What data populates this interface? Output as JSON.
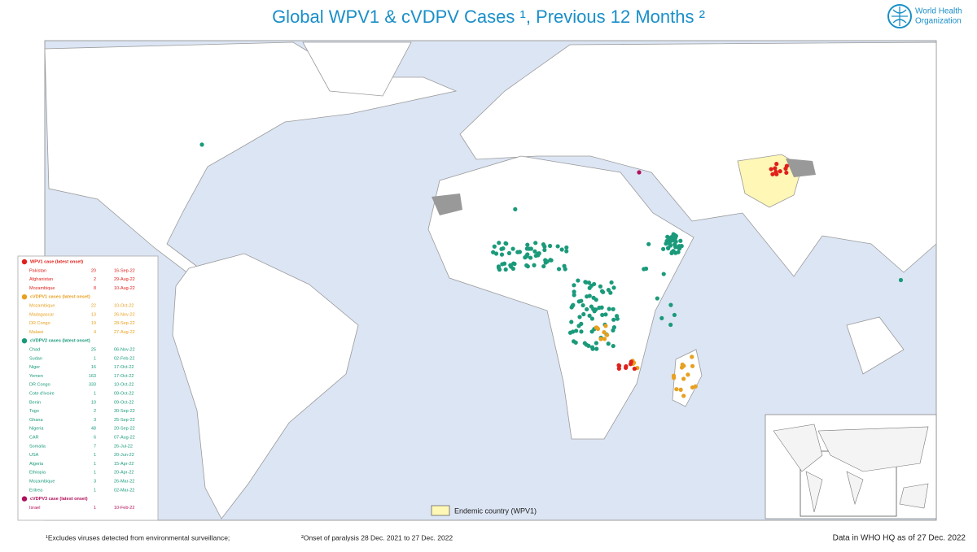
{
  "title": "Global WPV1 & cVDPV Cases ¹, Previous 12 Months ²",
  "logo": {
    "line1": "World Health",
    "line2": "Organization"
  },
  "case_table": [
    {
      "header": "WPV1 case (latest onset)",
      "color": "#e0201b",
      "rows": [
        [
          "Pakistan",
          "20",
          "16-Sep-22"
        ],
        [
          "Afghanistan",
          "2",
          "29-Aug-22"
        ],
        [
          "Mozambique",
          "8",
          "10-Aug-22"
        ]
      ]
    },
    {
      "header": "cVDPV1 cases (latest onset)",
      "color": "#e8a020",
      "rows": [
        [
          "Mozambique",
          "22",
          "10-Oct-22"
        ],
        [
          "Madagascar",
          "13",
          "26-Nov-22"
        ],
        [
          "DR Congo",
          "19",
          "28-Sep-22"
        ],
        [
          "Malawi",
          "4",
          "27-Aug-22"
        ]
      ]
    },
    {
      "header": "cVDPV2 cases (latest onset)",
      "color": "#1a9a7a",
      "rows": [
        [
          "Chad",
          "25",
          "06-Nov-22"
        ],
        [
          "Sudan",
          "1",
          "02-Feb-22"
        ],
        [
          "Niger",
          "16",
          "17-Oct-22"
        ],
        [
          "Yemen",
          "163",
          "17-Oct-22"
        ],
        [
          "DR Congo",
          "333",
          "10-Oct-22"
        ],
        [
          "Cote d'Ivoire",
          "1",
          "09-Oct-22"
        ],
        [
          "Benin",
          "10",
          "09-Oct-22"
        ],
        [
          "Togo",
          "2",
          "30-Sep-22"
        ],
        [
          "Ghana",
          "3",
          "25-Sep-22"
        ],
        [
          "Nigeria",
          "48",
          "20-Sep-22"
        ],
        [
          "CAR",
          "6",
          "07-Aug-22"
        ],
        [
          "Somalia",
          "7",
          "26-Jul-22"
        ],
        [
          "USA",
          "1",
          "20-Jun-22"
        ],
        [
          "Algeria",
          "1",
          "15-Apr-22"
        ],
        [
          "Ethiopia",
          "1",
          "20-Apr-22"
        ],
        [
          "Mozambique",
          "3",
          "26-Mar-22"
        ],
        [
          "Eritrea",
          "1",
          "02-Mar-22"
        ]
      ]
    },
    {
      "header": "cVDPV3 case (latest onset)",
      "color": "#b0105a",
      "rows": [
        [
          "Israel",
          "1",
          "10-Feb-22"
        ]
      ]
    }
  ],
  "legend": "Endemic country (WPV1)",
  "footnotes": {
    "note1": "¹Excludes viruses detected from environmental surveillance;",
    "note2": "²Onset of paralysis  28 Dec. 2021 to 27 Dec. 2022",
    "data_date": "Data in WHO HQ as of 27 Dec. 2022"
  }
}
